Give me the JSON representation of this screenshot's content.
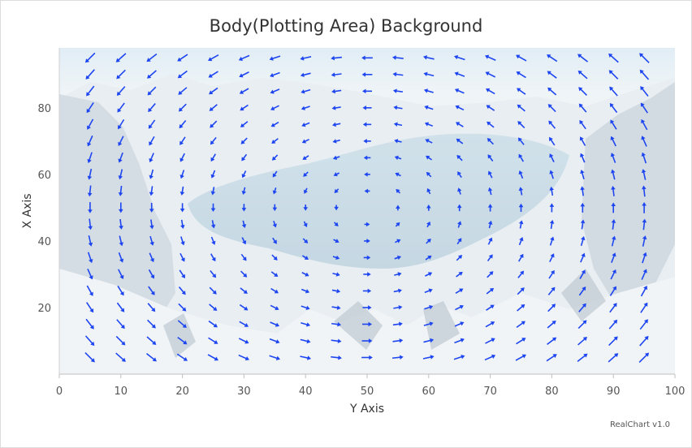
{
  "chart_data": {
    "type": "vector",
    "title": "Body(Plotting Area) Background",
    "xlabel": "Y Axis",
    "ylabel": "X Axis",
    "xlim": [
      0,
      100
    ],
    "ylim": [
      0,
      98
    ],
    "x_ticks": [
      "0",
      "10",
      "20",
      "30",
      "40",
      "50",
      "60",
      "70",
      "80",
      "90",
      "100"
    ],
    "y_ticks": [
      "20",
      "40",
      "60",
      "80"
    ],
    "grid": false,
    "background_image": true,
    "arrow_color": "#1e46f0",
    "x_values": [
      5,
      10,
      15,
      20,
      25,
      30,
      35,
      40,
      45,
      50,
      55,
      60,
      65,
      70,
      75,
      80,
      85,
      90,
      95
    ],
    "y_values": [
      5,
      10,
      15,
      20,
      25,
      30,
      35,
      40,
      45,
      50,
      55,
      60,
      65,
      70,
      75,
      80,
      85,
      90,
      95
    ],
    "field": "vx = -(y - 50) / 50, vy = (x - 50) / 50 (rotational field estimated from the plot)"
  },
  "credit": "RealChart v1.0"
}
